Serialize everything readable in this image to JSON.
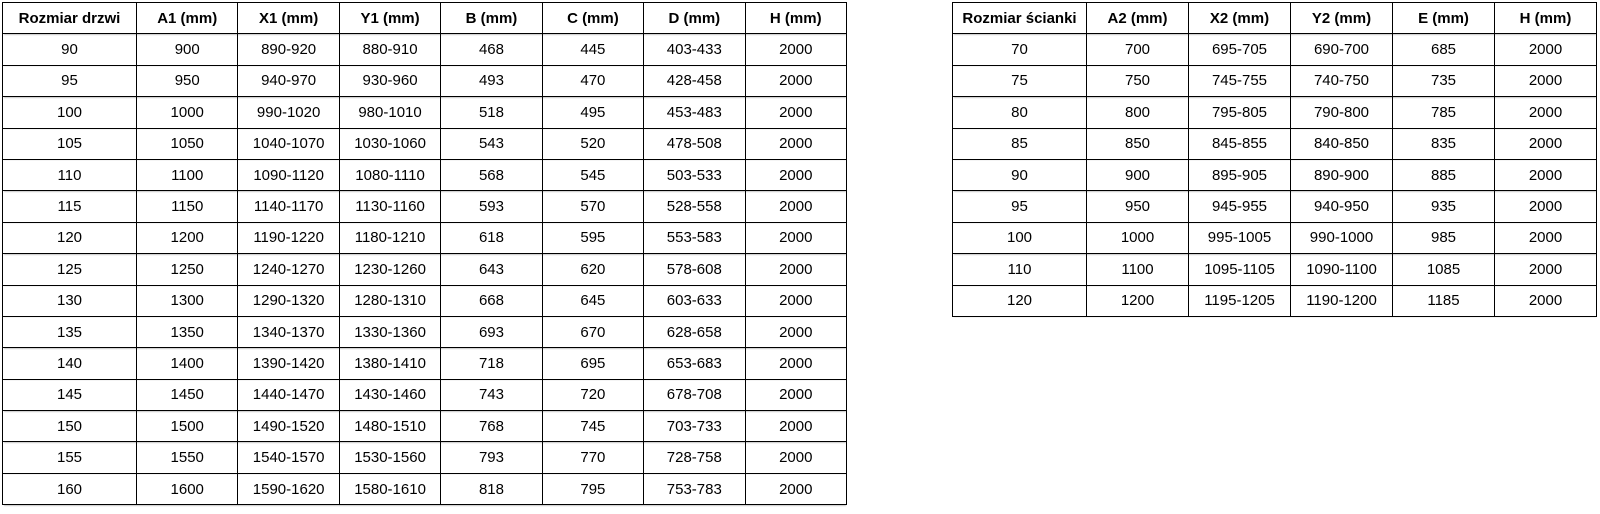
{
  "tables": [
    {
      "name": "door-dimensions-table",
      "headers": [
        "Rozmiar drzwi",
        "A1 (mm)",
        "X1 (mm)",
        "Y1 (mm)",
        "B (mm)",
        "C (mm)",
        "D (mm)",
        "H (mm)"
      ],
      "rows": [
        [
          "90",
          "900",
          "890-920",
          "880-910",
          "468",
          "445",
          "403-433",
          "2000"
        ],
        [
          "95",
          "950",
          "940-970",
          "930-960",
          "493",
          "470",
          "428-458",
          "2000"
        ],
        [
          "100",
          "1000",
          "990-1020",
          "980-1010",
          "518",
          "495",
          "453-483",
          "2000"
        ],
        [
          "105",
          "1050",
          "1040-1070",
          "1030-1060",
          "543",
          "520",
          "478-508",
          "2000"
        ],
        [
          "110",
          "1100",
          "1090-1120",
          "1080-1110",
          "568",
          "545",
          "503-533",
          "2000"
        ],
        [
          "115",
          "1150",
          "1140-1170",
          "1130-1160",
          "593",
          "570",
          "528-558",
          "2000"
        ],
        [
          "120",
          "1200",
          "1190-1220",
          "1180-1210",
          "618",
          "595",
          "553-583",
          "2000"
        ],
        [
          "125",
          "1250",
          "1240-1270",
          "1230-1260",
          "643",
          "620",
          "578-608",
          "2000"
        ],
        [
          "130",
          "1300",
          "1290-1320",
          "1280-1310",
          "668",
          "645",
          "603-633",
          "2000"
        ],
        [
          "135",
          "1350",
          "1340-1370",
          "1330-1360",
          "693",
          "670",
          "628-658",
          "2000"
        ],
        [
          "140",
          "1400",
          "1390-1420",
          "1380-1410",
          "718",
          "695",
          "653-683",
          "2000"
        ],
        [
          "145",
          "1450",
          "1440-1470",
          "1430-1460",
          "743",
          "720",
          "678-708",
          "2000"
        ],
        [
          "150",
          "1500",
          "1490-1520",
          "1480-1510",
          "768",
          "745",
          "703-733",
          "2000"
        ],
        [
          "155",
          "1550",
          "1540-1570",
          "1530-1560",
          "793",
          "770",
          "728-758",
          "2000"
        ],
        [
          "160",
          "1600",
          "1590-1620",
          "1580-1610",
          "818",
          "795",
          "753-783",
          "2000"
        ]
      ]
    },
    {
      "name": "wall-panel-dimensions-table",
      "headers": [
        "Rozmiar ścianki",
        "A2 (mm)",
        "X2 (mm)",
        "Y2 (mm)",
        "E (mm)",
        "H (mm)"
      ],
      "rows": [
        [
          "70",
          "700",
          "695-705",
          "690-700",
          "685",
          "2000"
        ],
        [
          "75",
          "750",
          "745-755",
          "740-750",
          "735",
          "2000"
        ],
        [
          "80",
          "800",
          "795-805",
          "790-800",
          "785",
          "2000"
        ],
        [
          "85",
          "850",
          "845-855",
          "840-850",
          "835",
          "2000"
        ],
        [
          "90",
          "900",
          "895-905",
          "890-900",
          "885",
          "2000"
        ],
        [
          "95",
          "950",
          "945-955",
          "940-950",
          "935",
          "2000"
        ],
        [
          "100",
          "1000",
          "995-1005",
          "990-1000",
          "985",
          "2000"
        ],
        [
          "110",
          "1100",
          "1095-1105",
          "1090-1100",
          "1085",
          "2000"
        ],
        [
          "120",
          "1200",
          "1195-1205",
          "1190-1200",
          "1185",
          "2000"
        ]
      ]
    }
  ],
  "colors": {
    "border": "#000000",
    "text": "#000000",
    "background": "#ffffff"
  }
}
